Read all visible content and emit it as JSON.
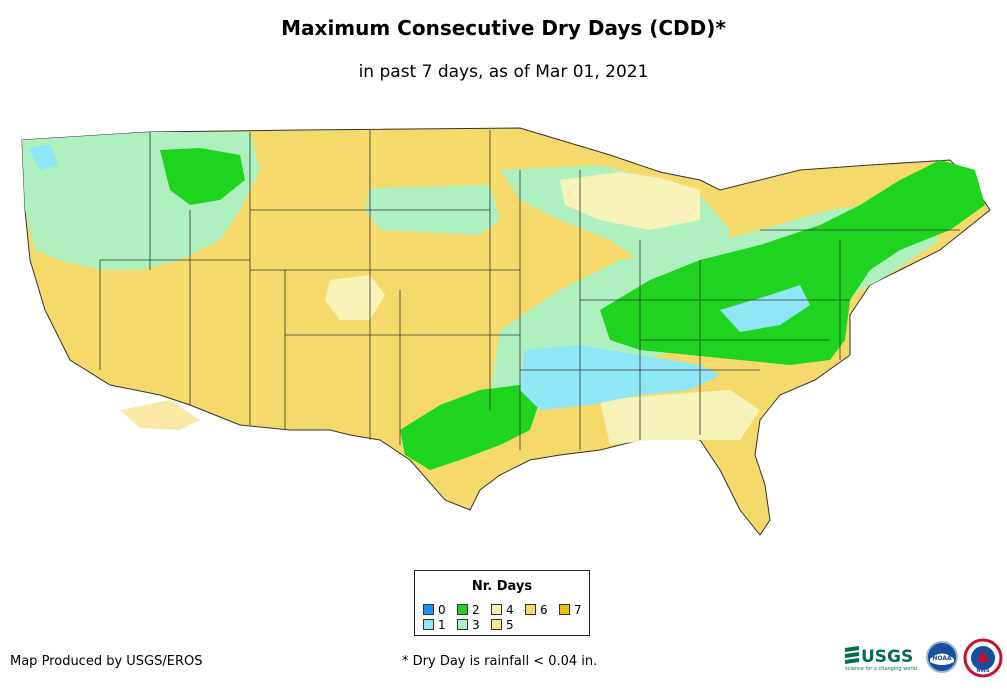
{
  "title": "Maximum Consecutive Dry Days (CDD)*",
  "subtitle": "in past 7 days, as of Mar 01, 2021",
  "legend": {
    "title": "Nr. Days",
    "items": [
      {
        "label": "0",
        "color": "#1e90ff"
      },
      {
        "label": "1",
        "color": "#8fe6f7"
      },
      {
        "label": "2",
        "color": "#1ed41e"
      },
      {
        "label": "3",
        "color": "#aef0c0"
      },
      {
        "label": "4",
        "color": "#f7f3b8"
      },
      {
        "label": "5",
        "color": "#f5e98a"
      },
      {
        "label": "6",
        "color": "#f5da6b"
      },
      {
        "label": "7",
        "color": "#f0c000"
      }
    ]
  },
  "credit": "Map Produced by USGS/EROS",
  "footnote": "* Dry Day is rainfall < 0.04 in.",
  "logos": {
    "usgs_text": "USGS",
    "usgs_tagline": "science for a changing world",
    "noaa_text": "NOAA",
    "nws_text": "NWS"
  }
}
